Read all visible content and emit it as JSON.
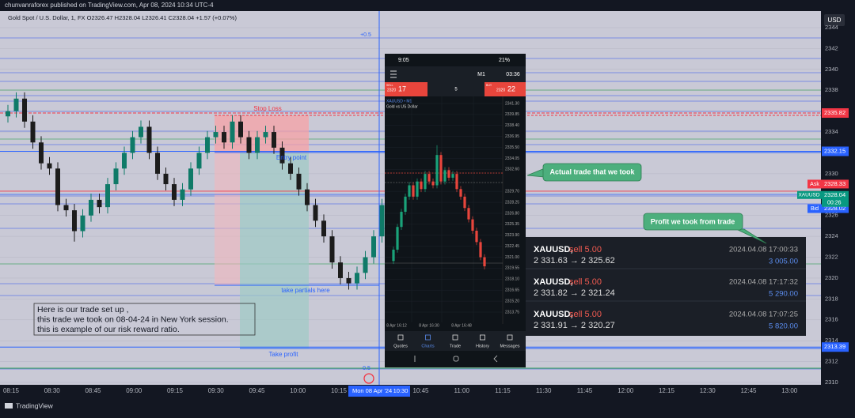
{
  "header": {
    "publisher": "chunvanraforex published on TradingView.com, Apr 08, 2024 10:34 UTC-4",
    "symbol_line": "Gold Spot / U.S. Dollar, 1, FX  O2326.47 H2328.04 L2326.41 C2328.04 +1.57 (+0.07%)"
  },
  "price_axis": {
    "currency": "USD",
    "ylim": [
      2310,
      2344
    ],
    "yticks": [
      2310,
      2312,
      2314,
      2316,
      2318,
      2320,
      2322,
      2324,
      2326,
      2328,
      2330,
      2332,
      2334,
      2336,
      2338,
      2340,
      2342,
      2344
    ]
  },
  "levels": [
    {
      "price": 2335.82,
      "color": "#f23645"
    },
    {
      "price": 2332.15,
      "color": "#2962ff"
    },
    {
      "price": 2313.39,
      "color": "#2962ff"
    }
  ],
  "ask": {
    "name": "Ask",
    "price": 2328.33
  },
  "last": {
    "name": "XAUUSD",
    "price": 2328.04,
    "countdown": "00:26"
  },
  "bid": {
    "name": "Bid",
    "price": 2328.02
  },
  "time_labels": [
    "08:15",
    "08:30",
    "08:45",
    "09:00",
    "09:15",
    "09:30",
    "09:45",
    "10:00",
    "10:15",
    "10:45",
    "11:00",
    "11:15",
    "11:30",
    "11:45",
    "12:00",
    "12:15",
    "12:30",
    "12:45",
    "13:00"
  ],
  "crosshair": {
    "date": "Mon 08 Apr '24",
    "time": "10:30"
  },
  "candles": [
    [
      2335.5,
      2336.6,
      2334.9,
      2336.0
    ],
    [
      2336.0,
      2337.8,
      2335.4,
      2337.2
    ],
    [
      2337.2,
      2337.8,
      2334.4,
      2335.0
    ],
    [
      2335.0,
      2335.6,
      2332.4,
      2333.0
    ],
    [
      2333.0,
      2333.6,
      2330.4,
      2331.0
    ],
    [
      2331.0,
      2331.6,
      2329.9,
      2330.5
    ],
    [
      2330.5,
      2331.1,
      2326.4,
      2327.0
    ],
    [
      2327.0,
      2327.6,
      2325.9,
      2326.5
    ],
    [
      2326.5,
      2327.1,
      2323.5,
      2324.5
    ],
    [
      2324.5,
      2326.6,
      2323.9,
      2326.0
    ],
    [
      2326.0,
      2328.1,
      2325.4,
      2327.5
    ],
    [
      2327.5,
      2328.1,
      2326.2,
      2326.8
    ],
    [
      2326.8,
      2329.6,
      2326.2,
      2329.0
    ],
    [
      2329.0,
      2331.1,
      2328.4,
      2330.5
    ],
    [
      2330.5,
      2332.6,
      2329.9,
      2332.0
    ],
    [
      2332.0,
      2334.1,
      2331.4,
      2333.5
    ],
    [
      2333.5,
      2335.1,
      2332.9,
      2334.5
    ],
    [
      2334.5,
      2335.1,
      2331.4,
      2332.0
    ],
    [
      2332.0,
      2332.6,
      2329.4,
      2330.0
    ],
    [
      2330.0,
      2330.6,
      2328.4,
      2329.0
    ],
    [
      2329.0,
      2329.6,
      2326.9,
      2327.5
    ],
    [
      2327.5,
      2329.1,
      2326.9,
      2328.5
    ],
    [
      2328.5,
      2331.1,
      2327.9,
      2330.5
    ],
    [
      2330.5,
      2332.6,
      2329.9,
      2332.0
    ],
    [
      2332.0,
      2334.1,
      2331.4,
      2333.5
    ],
    [
      2333.5,
      2334.6,
      2332.9,
      2334.0
    ],
    [
      2334.0,
      2334.6,
      2332.4,
      2333.0
    ],
    [
      2333.0,
      2335.6,
      2332.4,
      2335.0
    ],
    [
      2335.0,
      2335.6,
      2332.9,
      2333.5
    ],
    [
      2333.5,
      2334.1,
      2331.4,
      2332.0
    ],
    [
      2332.0,
      2334.1,
      2331.4,
      2333.5
    ],
    [
      2333.5,
      2334.6,
      2332.9,
      2334.0
    ],
    [
      2334.0,
      2334.6,
      2331.9,
      2332.5
    ],
    [
      2332.5,
      2333.1,
      2330.4,
      2331.0
    ],
    [
      2331.0,
      2331.6,
      2329.4,
      2330.0
    ],
    [
      2330.0,
      2330.6,
      2327.9,
      2328.5
    ],
    [
      2328.5,
      2329.1,
      2326.4,
      2327.0
    ],
    [
      2327.0,
      2327.6,
      2324.9,
      2325.5
    ],
    [
      2325.5,
      2326.1,
      2323.4,
      2324.0
    ],
    [
      2324.0,
      2324.6,
      2320.9,
      2321.5
    ],
    [
      2321.5,
      2322.1,
      2319.4,
      2320.0
    ],
    [
      2320.0,
      2320.6,
      2318.9,
      2319.5
    ],
    [
      2319.5,
      2321.1,
      2318.9,
      2320.5
    ],
    [
      2320.5,
      2322.6,
      2319.9,
      2322.0
    ],
    [
      2322.0,
      2324.6,
      2321.4,
      2324.0
    ],
    [
      2324.0,
      2327.6,
      2323.4,
      2327.0
    ]
  ],
  "annotations": {
    "stop_loss": "Stop Loss",
    "entry": "Entry point",
    "partials": "take partials here",
    "take_profit": "Take profit",
    "fib_top": "+0.5",
    "fib_bottom": "0.5",
    "note": [
      "Here is our trade set up ,",
      "this trade we took on 08-04-24 in New York session.",
      "this is example of our risk reward ratio."
    ],
    "callout_trade": "Actual trade that we took",
    "callout_profit": "Profit we took from trade"
  },
  "phone": {
    "clock": "9:05",
    "battery": "21%",
    "timeframe": "M1",
    "timer": "03:36",
    "sell_label": "SELL",
    "sell_big": "2320",
    "sell_small": "17",
    "lot": "5",
    "buy_label": "BUY",
    "buy_big": "2320",
    "buy_small": "22",
    "symbol": "XAUUSD • M1",
    "description": "Gold vs US Dollar",
    "ylim": [
      2313.75,
      2341.3
    ],
    "yticks": [
      {
        "value": 2341.3,
        "label": "2341.30"
      },
      2339.85,
      {
        "value": 2338.4,
        "label": "2338.40"
      },
      2336.95,
      {
        "value": 2335.5,
        "label": "2335.50"
      },
      2334.05,
      {
        "value": 2332.6,
        "label": "2332.60"
      },
      {
        "value": 2329.7,
        "label": "2329.70"
      },
      2328.25,
      {
        "value": 2326.8,
        "label": "2326.80"
      },
      2325.35,
      {
        "value": 2323.9,
        "label": "2323.90"
      },
      2322.45,
      {
        "value": 2321.0,
        "label": "2321.00"
      },
      2319.55,
      {
        "value": 2318.1,
        "label": "2318.10"
      },
      2316.65,
      {
        "value": 2315.2,
        "label": "2315.20"
      },
      2313.75
    ],
    "times": [
      "8 Apr 16:12",
      "8 Apr 16:30",
      "8 Apr 16:48"
    ],
    "candles": [
      [
        2320.5,
        2322.4,
        2320.1,
        2322.0
      ],
      [
        2322.0,
        2325.4,
        2321.6,
        2325.0
      ],
      [
        2325.0,
        2327.4,
        2324.6,
        2327.0
      ],
      [
        2327.0,
        2329.4,
        2326.6,
        2329.0
      ],
      [
        2329.0,
        2330.9,
        2328.6,
        2330.5
      ],
      [
        2330.5,
        2330.9,
        2328.6,
        2329.0
      ],
      [
        2329.0,
        2331.4,
        2328.6,
        2331.0
      ],
      [
        2331.0,
        2331.4,
        2329.6,
        2330.0
      ],
      [
        2330.0,
        2332.4,
        2329.6,
        2332.0
      ],
      [
        2332.0,
        2332.4,
        2330.6,
        2331.0
      ],
      [
        2331.0,
        2331.4,
        2330.1,
        2330.5
      ],
      [
        2330.5,
        2335.8,
        2330.1,
        2334.5
      ],
      [
        2334.5,
        2334.9,
        2330.6,
        2331.0
      ],
      [
        2331.0,
        2332.9,
        2330.6,
        2332.5
      ],
      [
        2332.5,
        2332.9,
        2331.1,
        2331.5
      ],
      [
        2331.5,
        2332.4,
        2331.1,
        2332.0
      ],
      [
        2332.0,
        2332.4,
        2329.6,
        2330.0
      ],
      [
        2330.0,
        2330.4,
        2328.6,
        2329.0
      ],
      [
        2329.0,
        2329.4,
        2327.1,
        2327.5
      ],
      [
        2327.5,
        2327.9,
        2325.6,
        2326.0
      ],
      [
        2326.0,
        2326.4,
        2324.1,
        2324.5
      ],
      [
        2324.5,
        2324.9,
        2322.6,
        2323.0
      ],
      [
        2323.0,
        2323.4,
        2320.6,
        2321.0
      ],
      [
        2321.0,
        2321.4,
        2319.4,
        2319.8
      ]
    ],
    "nav": [
      "Quotes",
      "Charts",
      "Trade",
      "History",
      "Messages"
    ]
  },
  "trades": [
    {
      "title": "XAUUSD,",
      "side": "sell 5.00",
      "time": "2024.04.08 17:00:33",
      "prices": "2 331.63 → 2 325.62",
      "profit": "3 005.00"
    },
    {
      "title": "XAUUSD,",
      "side": "sell 5.00",
      "time": "2024.04.08 17:17:32",
      "prices": "2 331.82 → 2 321.24",
      "profit": "5 290.00"
    },
    {
      "title": "XAUUSD,",
      "side": "sell 5.00",
      "time": "2024.04.08 17:07:25",
      "prices": "2 331.91 → 2 320.27",
      "profit": "5 820.00"
    }
  ],
  "footer": {
    "brand": "TradingView"
  }
}
